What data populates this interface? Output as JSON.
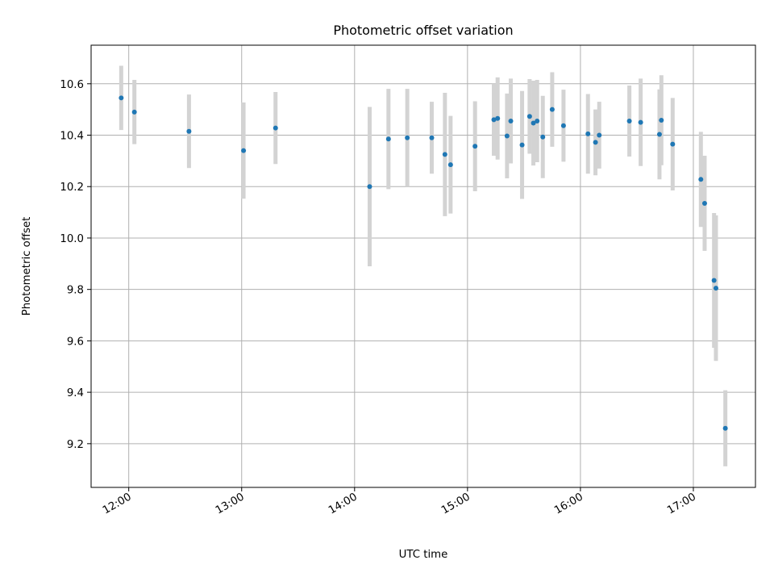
{
  "chart_data": {
    "type": "scatter",
    "title": "Photometric offset variation",
    "xlabel": "UTC time",
    "ylabel": "Photometric offset",
    "xlim": [
      "11:40",
      "17:33"
    ],
    "ylim": [
      9.03,
      10.75
    ],
    "x_ticks": [
      "12:00",
      "13:00",
      "14:00",
      "15:00",
      "16:00",
      "17:00"
    ],
    "y_ticks": [
      "9.2",
      "9.4",
      "9.6",
      "9.8",
      "10.0",
      "10.2",
      "10.4",
      "10.6"
    ],
    "grid": true,
    "marker_color": "#1f77b4",
    "errorbar_color": "#d3d3d3",
    "points": [
      {
        "t": "11:56",
        "y": 10.545,
        "err": 0.125
      },
      {
        "t": "12:03",
        "y": 10.49,
        "err": 0.125
      },
      {
        "t": "12:32",
        "y": 10.415,
        "err": 0.143
      },
      {
        "t": "13:01",
        "y": 10.34,
        "err": 0.187
      },
      {
        "t": "13:18",
        "y": 10.428,
        "err": 0.14
      },
      {
        "t": "14:08",
        "y": 10.2,
        "err": 0.31
      },
      {
        "t": "14:18",
        "y": 10.385,
        "err": 0.195
      },
      {
        "t": "14:28",
        "y": 10.39,
        "err": 0.19
      },
      {
        "t": "14:41",
        "y": 10.39,
        "err": 0.14
      },
      {
        "t": "14:48",
        "y": 10.325,
        "err": 0.24
      },
      {
        "t": "14:51",
        "y": 10.285,
        "err": 0.19
      },
      {
        "t": "15:04",
        "y": 10.357,
        "err": 0.175
      },
      {
        "t": "15:14",
        "y": 10.46,
        "err": 0.14
      },
      {
        "t": "15:16",
        "y": 10.465,
        "err": 0.16
      },
      {
        "t": "15:21",
        "y": 10.397,
        "err": 0.165
      },
      {
        "t": "15:23",
        "y": 10.455,
        "err": 0.165
      },
      {
        "t": "15:29",
        "y": 10.362,
        "err": 0.21
      },
      {
        "t": "15:33",
        "y": 10.473,
        "err": 0.145
      },
      {
        "t": "15:35",
        "y": 10.447,
        "err": 0.165
      },
      {
        "t": "15:37",
        "y": 10.455,
        "err": 0.16
      },
      {
        "t": "15:40",
        "y": 10.393,
        "err": 0.16
      },
      {
        "t": "15:45",
        "y": 10.5,
        "err": 0.145
      },
      {
        "t": "15:51",
        "y": 10.437,
        "err": 0.14
      },
      {
        "t": "16:04",
        "y": 10.405,
        "err": 0.155
      },
      {
        "t": "16:08",
        "y": 10.372,
        "err": 0.128
      },
      {
        "t": "16:10",
        "y": 10.4,
        "err": 0.13
      },
      {
        "t": "16:26",
        "y": 10.455,
        "err": 0.138
      },
      {
        "t": "16:32",
        "y": 10.45,
        "err": 0.17
      },
      {
        "t": "16:42",
        "y": 10.403,
        "err": 0.175
      },
      {
        "t": "16:43",
        "y": 10.458,
        "err": 0.175
      },
      {
        "t": "16:49",
        "y": 10.365,
        "err": 0.18
      },
      {
        "t": "17:04",
        "y": 10.228,
        "err": 0.185
      },
      {
        "t": "17:06",
        "y": 10.135,
        "err": 0.185
      },
      {
        "t": "17:11",
        "y": 9.835,
        "err": 0.262
      },
      {
        "t": "17:12",
        "y": 9.805,
        "err": 0.283
      },
      {
        "t": "17:17",
        "y": 9.26,
        "err": 0.148
      }
    ]
  }
}
